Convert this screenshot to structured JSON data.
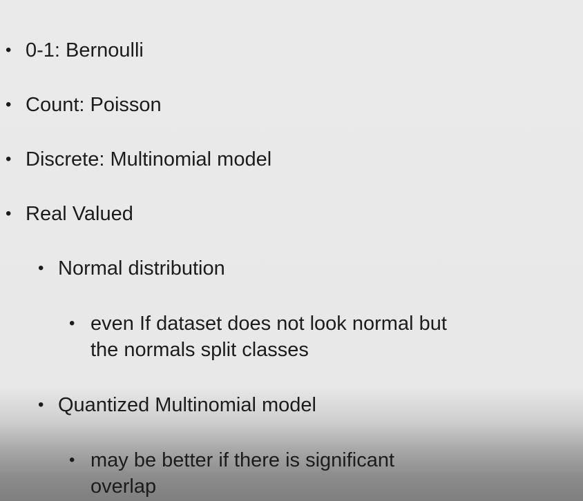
{
  "bullets": {
    "b1": "0-1: Bernoulli",
    "b2": "Count: Poisson",
    "b3": "Discrete: Multinomial model",
    "b4": "Real Valued",
    "b4_1": "Normal distribution",
    "b4_1_1_line1": "even If dataset does not look normal but",
    "b4_1_1_line2": "the normals split classes",
    "b4_2": "Quantized Multinomial model",
    "b4_2_1_line1": "may be better if there is significant",
    "b4_2_1_line2": "overlap"
  },
  "bullet_glyph": "•"
}
